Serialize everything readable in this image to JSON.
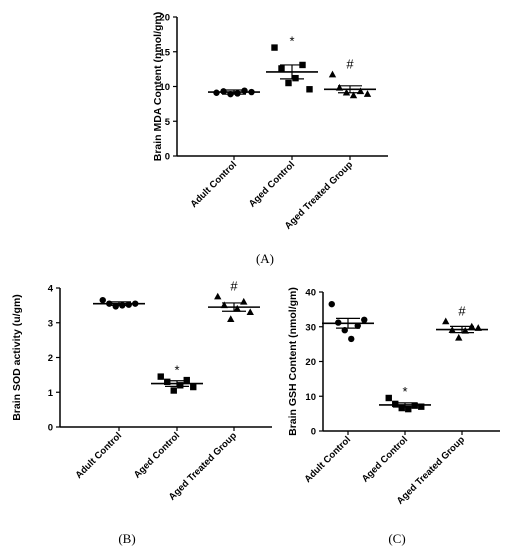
{
  "chart_data": [
    {
      "panel": "(A)",
      "type": "scatter",
      "ylabel": "Brain MDA Content (nmol/gm)",
      "ylim": [
        0,
        20
      ],
      "yticks": [
        "0",
        "5",
        "10",
        "15",
        "20"
      ],
      "categories": [
        "Adult Control",
        "Aged Control",
        "Aged Treated Group"
      ],
      "markers": [
        "circle",
        "square",
        "triangle"
      ],
      "points": [
        [
          9.1,
          9.3,
          8.9,
          9.0,
          9.4,
          9.2
        ],
        [
          15.6,
          12.6,
          10.5,
          11.2,
          13.1,
          9.6
        ],
        [
          11.7,
          9.8,
          9.1,
          8.7,
          9.3,
          8.9
        ]
      ],
      "means": [
        9.2,
        12.1,
        9.6
      ],
      "sem": [
        0.3,
        1.0,
        0.5
      ],
      "annotations": [
        "",
        "*",
        "#"
      ]
    },
    {
      "panel": "(B)",
      "type": "scatter",
      "ylabel": "Brain SOD activity (u/gm)",
      "ylim": [
        0,
        4
      ],
      "yticks": [
        "0",
        "1",
        "2",
        "3",
        "4"
      ],
      "categories": [
        "Adult Control",
        "Aged Control",
        "Aged Treated Group"
      ],
      "markers": [
        "circle",
        "square",
        "triangle"
      ],
      "points": [
        [
          3.65,
          3.55,
          3.47,
          3.5,
          3.52,
          3.55
        ],
        [
          1.45,
          1.3,
          1.05,
          1.2,
          1.35,
          1.15
        ],
        [
          3.75,
          3.5,
          3.1,
          3.4,
          3.6,
          3.3
        ]
      ],
      "means": [
        3.55,
        1.25,
        3.45
      ],
      "sem": [
        0.05,
        0.08,
        0.12
      ],
      "annotations": [
        "",
        "*",
        "#"
      ]
    },
    {
      "panel": "(C)",
      "type": "scatter",
      "ylabel": "Brain GSH Content (nmol/gm)",
      "ylim": [
        0,
        40
      ],
      "yticks": [
        "0",
        "10",
        "20",
        "30",
        "40"
      ],
      "categories": [
        "Adult Control",
        "Aged Control",
        "Aged Treated Group"
      ],
      "markers": [
        "circle",
        "square",
        "triangle"
      ],
      "points": [
        [
          36.5,
          31.2,
          29.0,
          26.5,
          30.3,
          32.0
        ],
        [
          9.5,
          7.8,
          6.6,
          6.3,
          7.3,
          7.0
        ],
        [
          31.5,
          29.0,
          26.8,
          28.8,
          30.0,
          29.6
        ]
      ],
      "means": [
        31.0,
        7.5,
        29.2
      ],
      "sem": [
        1.4,
        0.6,
        0.9
      ],
      "annotations": [
        "",
        "*",
        "#"
      ]
    }
  ]
}
